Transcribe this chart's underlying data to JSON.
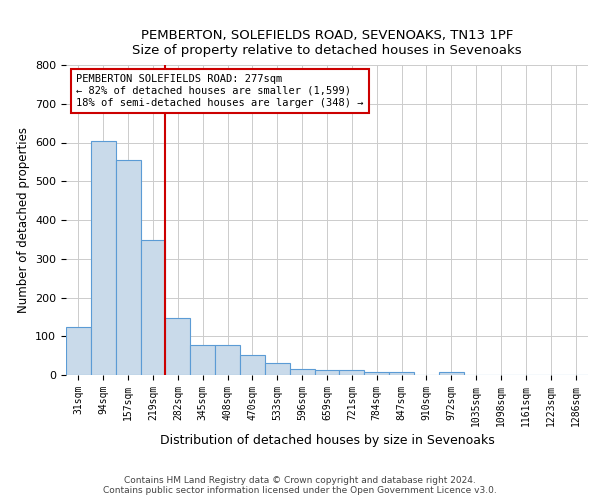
{
  "title1": "PEMBERTON, SOLEFIELDS ROAD, SEVENOAKS, TN13 1PF",
  "title2": "Size of property relative to detached houses in Sevenoaks",
  "xlabel": "Distribution of detached houses by size in Sevenoaks",
  "ylabel": "Number of detached properties",
  "categories": [
    "31sqm",
    "94sqm",
    "157sqm",
    "219sqm",
    "282sqm",
    "345sqm",
    "408sqm",
    "470sqm",
    "533sqm",
    "596sqm",
    "659sqm",
    "721sqm",
    "784sqm",
    "847sqm",
    "910sqm",
    "972sqm",
    "1035sqm",
    "1098sqm",
    "1161sqm",
    "1223sqm",
    "1286sqm"
  ],
  "values": [
    125,
    603,
    555,
    348,
    148,
    78,
    78,
    52,
    30,
    15,
    13,
    13,
    7,
    7,
    0,
    7,
    0,
    0,
    0,
    0,
    0
  ],
  "bar_color": "#c9daea",
  "bar_edge_color": "#5b9bd5",
  "vline_index": 4,
  "vline_color": "#cc0000",
  "annotation_title": "PEMBERTON SOLEFIELDS ROAD: 277sqm",
  "annotation_line1": "← 82% of detached houses are smaller (1,599)",
  "annotation_line2": "18% of semi-detached houses are larger (348) →",
  "annotation_box_color": "#ffffff",
  "annotation_box_edge": "#cc0000",
  "ylim": [
    0,
    800
  ],
  "yticks": [
    0,
    100,
    200,
    300,
    400,
    500,
    600,
    700,
    800
  ],
  "footer1": "Contains HM Land Registry data © Crown copyright and database right 2024.",
  "footer2": "Contains public sector information licensed under the Open Government Licence v3.0.",
  "bg_color": "#ffffff",
  "grid_color": "#cccccc"
}
